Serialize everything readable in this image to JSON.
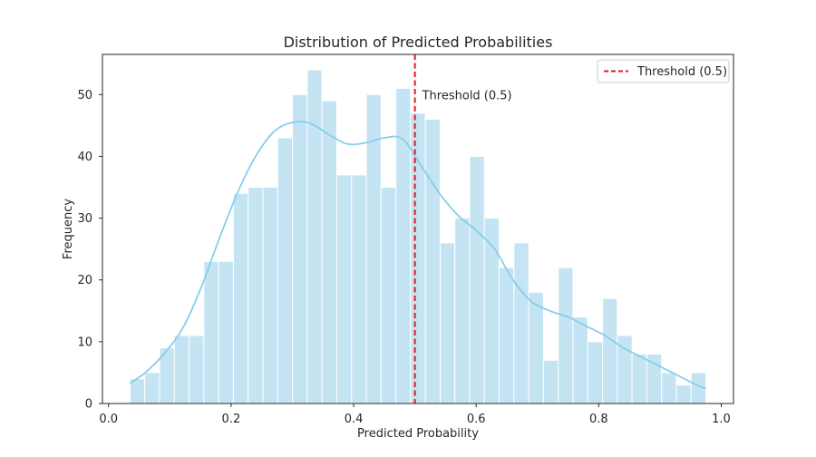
{
  "chart_data": {
    "type": "bar",
    "subtype": "histogram-with-kde",
    "title": "Distribution of Predicted Probabilities",
    "xlabel": "Predicted Probability",
    "ylabel": "Frequency",
    "xlim": [
      -0.01,
      1.02
    ],
    "ylim": [
      0,
      56.5
    ],
    "xticks": [
      0.0,
      0.2,
      0.4,
      0.6,
      0.8,
      1.0
    ],
    "xtick_labels": [
      "0.0",
      "0.2",
      "0.4",
      "0.6",
      "0.8",
      "1.0"
    ],
    "yticks": [
      0,
      10,
      20,
      30,
      40,
      50
    ],
    "ytick_labels": [
      "0",
      "10",
      "20",
      "30",
      "40",
      "50"
    ],
    "grid": false,
    "bar_color": "#c4e4f3",
    "bar_edge_color": "#ffffff",
    "kde_color": "#87ceeb",
    "bins": {
      "start": 0.035,
      "end": 0.975,
      "counts": [
        4,
        5,
        9,
        11,
        11,
        23,
        23,
        34,
        35,
        35,
        43,
        50,
        54,
        49,
        37,
        37,
        50,
        35,
        51,
        47,
        46,
        26,
        30,
        40,
        30,
        22,
        26,
        18,
        7,
        22,
        14,
        10,
        17,
        11,
        8,
        8,
        5,
        3,
        5
      ]
    },
    "kde": {
      "x": [
        0.035,
        0.06,
        0.09,
        0.12,
        0.15,
        0.18,
        0.21,
        0.24,
        0.27,
        0.3,
        0.33,
        0.36,
        0.39,
        0.42,
        0.45,
        0.48,
        0.51,
        0.54,
        0.57,
        0.6,
        0.63,
        0.66,
        0.69,
        0.72,
        0.75,
        0.78,
        0.81,
        0.84,
        0.87,
        0.9,
        0.93,
        0.96,
        0.975
      ],
      "y": [
        3.3,
        5.0,
        8.0,
        12.0,
        18.5,
        26.5,
        34.0,
        40.0,
        44.0,
        45.5,
        45.3,
        43.5,
        42.0,
        42.2,
        43.0,
        42.8,
        38.5,
        34.0,
        30.5,
        28.0,
        25.0,
        20.0,
        16.5,
        15.0,
        14.0,
        12.5,
        11.0,
        9.0,
        7.5,
        6.0,
        4.5,
        3.0,
        2.4
      ]
    },
    "threshold": {
      "value": 0.5,
      "color": "#e31a1c",
      "label": "Threshold (0.5)",
      "annotation": "Threshold (0.5)",
      "annotation_y": 50
    },
    "legend": {
      "position": "top-right",
      "entries": [
        "Threshold (0.5)"
      ]
    }
  }
}
